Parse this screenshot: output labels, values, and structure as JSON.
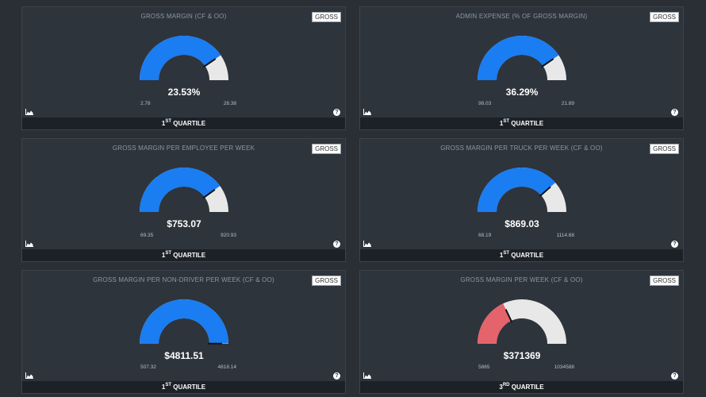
{
  "cards": [
    {
      "title": "GROSS MARGIN (CF & OO)",
      "badge": "GROSS",
      "value": "23.53%",
      "min": "2.78",
      "max": "28.38",
      "fill_fraction": 0.81,
      "fill_color": "#1a7df2",
      "quartile_num": "1",
      "quartile_sup": "ST",
      "quartile_word": "QUARTILE",
      "chart_icon": "area-chart-icon",
      "help_icon": "question-icon",
      "help_glyph": "?"
    },
    {
      "title": "ADMIN EXPENSE (% OF GROSS MARGIN)",
      "badge": "GROSS",
      "value": "36.29%",
      "min": "98.03",
      "max": "21.89",
      "fill_fraction": 0.81,
      "fill_color": "#1a7df2",
      "quartile_num": "1",
      "quartile_sup": "ST",
      "quartile_word": "QUARTILE",
      "chart_icon": "area-chart-icon",
      "help_icon": "question-icon",
      "help_glyph": "?"
    },
    {
      "title": "GROSS MARGIN PER EMPLOYEE PER WEEK",
      "badge": "GROSS",
      "value": "$753.07",
      "min": "69.35",
      "max": "920.93",
      "fill_fraction": 0.8,
      "fill_color": "#1a7df2",
      "quartile_num": "1",
      "quartile_sup": "ST",
      "quartile_word": "QUARTILE",
      "chart_icon": "area-chart-icon",
      "help_icon": "question-icon",
      "help_glyph": "?"
    },
    {
      "title": "GROSS MARGIN PER TRUCK PER WEEK (CF & OO)",
      "badge": "GROSS",
      "value": "$869.03",
      "min": "68.19",
      "max": "1114.68",
      "fill_fraction": 0.77,
      "fill_color": "#1a7df2",
      "quartile_num": "1",
      "quartile_sup": "ST",
      "quartile_word": "QUARTILE",
      "chart_icon": "area-chart-icon",
      "help_icon": "question-icon",
      "help_glyph": "?"
    },
    {
      "title": "GROSS MARGIN PER NON-DRIVER PER WEEK (CF & OO)",
      "badge": "GROSS",
      "value": "$4811.51",
      "min": "507.32",
      "max": "4818.14",
      "fill_fraction": 0.998,
      "fill_color": "#1a7df2",
      "quartile_num": "1",
      "quartile_sup": "ST",
      "quartile_word": "QUARTILE",
      "chart_icon": "area-chart-icon",
      "help_icon": "question-icon",
      "help_glyph": "?"
    },
    {
      "title": "GROSS MARGIN PER WEEK (CF & OO)",
      "badge": "GROSS",
      "value": "$371369",
      "min": "5865",
      "max": "1034588",
      "fill_fraction": 0.36,
      "fill_color": "#e5636b",
      "quartile_num": "3",
      "quartile_sup": "RD",
      "quartile_word": "QUARTILE",
      "chart_icon": "area-chart-icon",
      "help_icon": "question-icon",
      "help_glyph": "?"
    }
  ],
  "colors": {
    "background": "#2a2f36",
    "card": "#2e343c",
    "footer": "#1c2127",
    "gauge_track": "#e8e8e8",
    "needle": "#111111"
  }
}
